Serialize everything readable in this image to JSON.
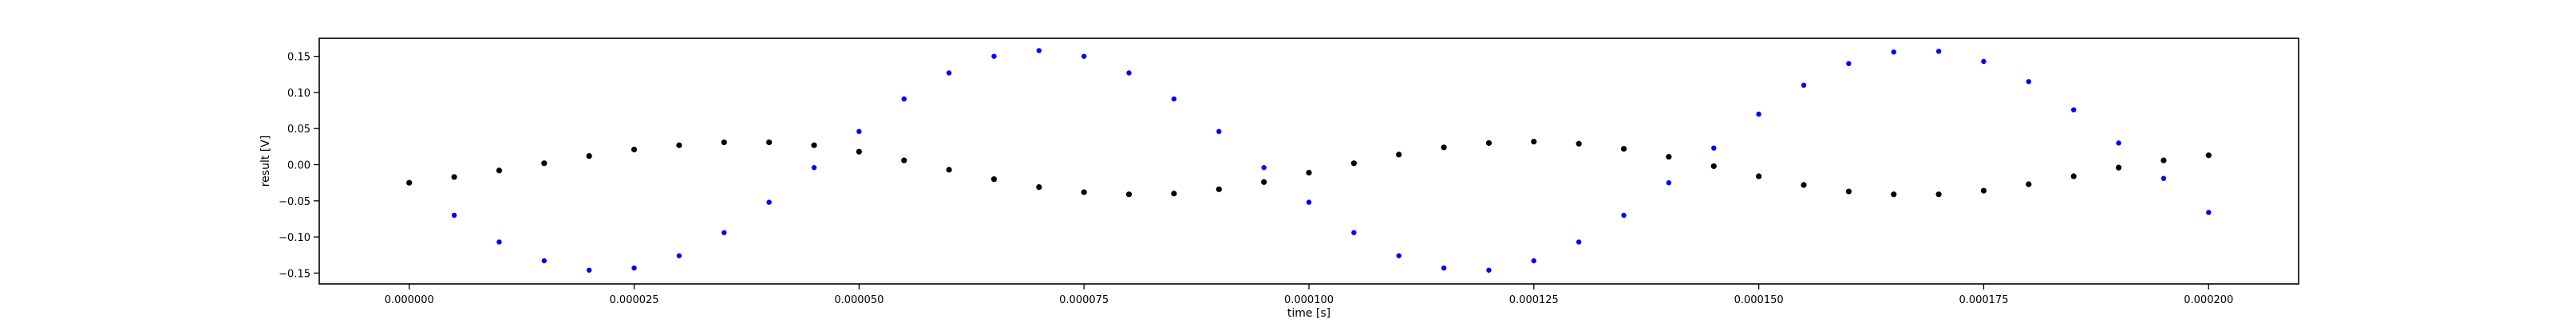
{
  "chart_data": {
    "type": "scatter",
    "title": "",
    "xlabel": "time [s]",
    "ylabel": "result [V]",
    "xlim": [
      -1e-05,
      0.00021
    ],
    "ylim": [
      -0.165,
      0.175
    ],
    "grid": false,
    "legend": "none",
    "x_ticks": [
      0.0,
      2.5e-05,
      5e-05,
      7.5e-05,
      0.0001,
      0.000125,
      0.00015,
      0.000175,
      0.0002
    ],
    "x_tick_labels": [
      "0.000000",
      "0.000025",
      "0.000050",
      "0.000075",
      "0.000100",
      "0.000125",
      "0.000150",
      "0.000175",
      "0.000200"
    ],
    "y_ticks": [
      -0.15,
      -0.1,
      -0.05,
      0.0,
      0.05,
      0.1,
      0.15
    ],
    "y_tick_labels": [
      "−0.15",
      "−0.10",
      "−0.05",
      "0.00",
      "0.05",
      "0.10",
      "0.15"
    ],
    "series": [
      {
        "color": "#0000ff",
        "x": [
          0.0,
          5e-06,
          1e-05,
          1.5e-05,
          2e-05,
          2.5e-05,
          3e-05,
          3.5e-05,
          4e-05,
          4.5e-05,
          5e-05,
          5.5e-05,
          6e-05,
          6.5e-05,
          7e-05,
          7.5e-05,
          8e-05,
          8.5e-05,
          9e-05,
          9.5e-05,
          0.0001,
          0.000105,
          0.00011,
          0.000115,
          0.00012,
          0.000125,
          0.00013,
          0.000135,
          0.00014,
          0.000145,
          0.00015,
          0.000155,
          0.00016,
          0.000165,
          0.00017,
          0.000175,
          0.00018,
          0.000185,
          0.00019,
          0.000195,
          0.0002
        ],
        "y": [
          -0.025,
          -0.07,
          -0.107,
          -0.133,
          -0.146,
          -0.143,
          -0.126,
          -0.094,
          -0.052,
          -0.004,
          0.046,
          0.091,
          0.127,
          0.15,
          0.158,
          0.15,
          0.127,
          0.091,
          0.046,
          -0.004,
          -0.052,
          -0.094,
          -0.126,
          -0.143,
          -0.146,
          -0.133,
          -0.107,
          -0.07,
          -0.025,
          0.023,
          0.07,
          0.11,
          0.14,
          0.156,
          0.157,
          0.143,
          0.115,
          0.076,
          0.03,
          -0.019,
          -0.066
        ],
        "continued_y_note": ""
      },
      {
        "color": "#000000",
        "x": [
          0.0,
          5e-06,
          1e-05,
          1.5e-05,
          2e-05,
          2.5e-05,
          3e-05,
          3.5e-05,
          4e-05,
          4.5e-05,
          5e-05,
          5.5e-05,
          6e-05,
          6.5e-05,
          7e-05,
          7.5e-05,
          8e-05,
          8.5e-05,
          9e-05,
          9.5e-05,
          0.0001,
          0.000105,
          0.00011,
          0.000115,
          0.00012,
          0.000125,
          0.00013,
          0.000135,
          0.00014,
          0.000145,
          0.00015,
          0.000155,
          0.00016,
          0.000165,
          0.00017,
          0.000175,
          0.00018,
          0.000185,
          0.00019,
          0.000195,
          0.0002
        ],
        "y": [
          -0.025,
          -0.017,
          -0.008,
          0.002,
          0.012,
          0.021,
          0.027,
          0.031,
          0.031,
          0.027,
          0.018,
          0.006,
          -0.007,
          -0.02,
          -0.031,
          -0.038,
          -0.041,
          -0.04,
          -0.034,
          -0.024,
          -0.011,
          0.002,
          0.014,
          0.024,
          0.03,
          0.032,
          0.029,
          0.022,
          0.011,
          -0.002,
          -0.016,
          -0.028,
          -0.037,
          -0.041,
          -0.041,
          -0.036,
          -0.027,
          -0.016,
          -0.004,
          0.006,
          0.013
        ]
      }
    ]
  }
}
